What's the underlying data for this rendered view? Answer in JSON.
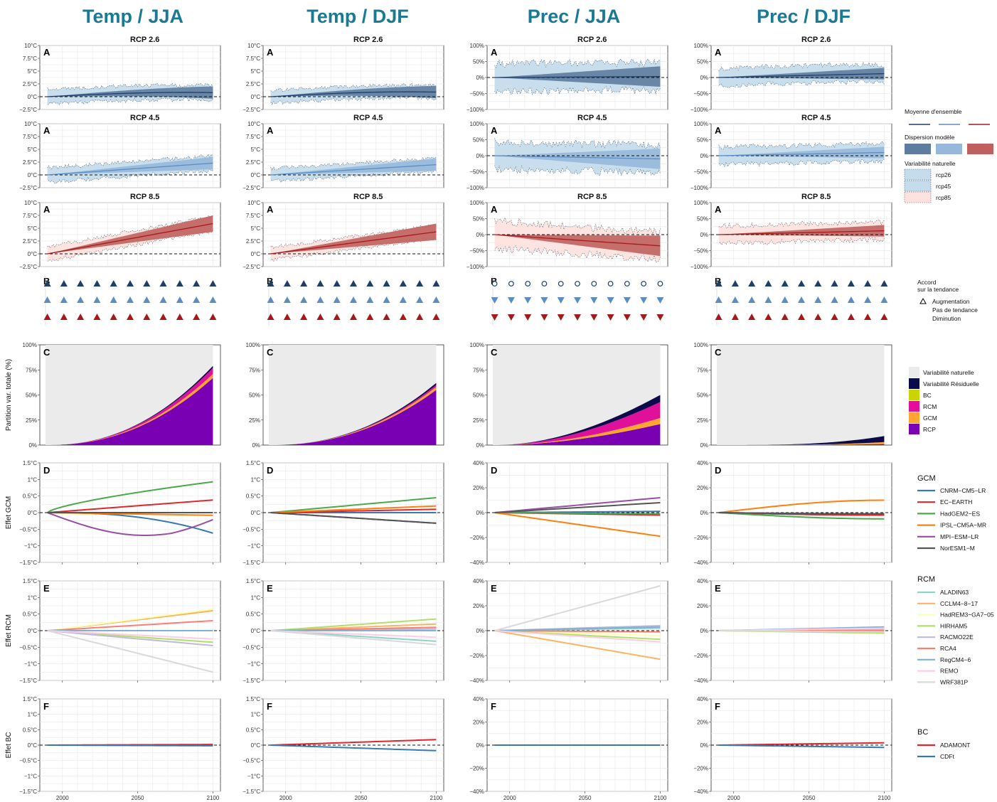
{
  "columns": [
    "Temp / JJA",
    "Temp / DJF",
    "Prec / JJA",
    "Prec / DJF"
  ],
  "panel_letters": [
    "A",
    "B",
    "C",
    "D",
    "E",
    "F"
  ],
  "rcp_titles": [
    "RCP 2.6",
    "RCP 4.5",
    "RCP 8.5"
  ],
  "axis_titles": {
    "C": "Partition var. totale (%)",
    "D": "Effet GCM",
    "E": "Effet RCM",
    "F": "Effet BC"
  },
  "x_ticks": [
    "2000",
    "2050",
    "2100"
  ],
  "ticks": {
    "temp_A": [
      "10°C",
      "7.5°C",
      "5°C",
      "2.5°C",
      "0°C",
      "−2.5°C"
    ],
    "prec_A": [
      "100%",
      "50%",
      "0%",
      "−50%",
      "−100%"
    ],
    "C": [
      "100%",
      "75%",
      "50%",
      "25%",
      "0%"
    ],
    "temp_DEF": [
      "1.5°C",
      "1°C",
      "0.5°C",
      "0°C",
      "−0.5°C",
      "−1°C",
      "−1.5°C"
    ],
    "prec_DEF": [
      "40%",
      "20%",
      "0%",
      "−20%",
      "−40%"
    ]
  },
  "colors": {
    "title": "#1b7a93",
    "rcp26": "#1f3f6a",
    "rcp45": "#5b8dc2",
    "rcp85": "#a31a1a",
    "spread26": "#5e7c9e",
    "spread45": "#97b8da",
    "spread85": "#c0605e",
    "nat26": "#c5dcec",
    "nat45": "#c5dcec",
    "nat85": "#fde3df",
    "var_nat": "#ebebeb",
    "var_res": "#0b0b4b",
    "BC": "#c9d400",
    "RCM": "#e0109a",
    "GCM": "#ffa533",
    "RCP": "#7a00b4"
  },
  "legends": {
    "ensemble": {
      "title": "Moyenne d'ensemble"
    },
    "dispersion": {
      "title": "Dispersion modèle"
    },
    "natural": {
      "title": "Variabilité naturelle",
      "items": [
        "rcp26",
        "rcp45",
        "rcp85"
      ]
    },
    "trend": {
      "title1": "Accord",
      "title2": "sur la tendance",
      "items": [
        "Augmentation",
        "Pas de tendance",
        "Diminution"
      ]
    },
    "partition": {
      "items": [
        "Variabilité naturelle",
        "Variabilité Résiduelle",
        "BC",
        "RCM",
        "GCM",
        "RCP"
      ]
    },
    "gcm": {
      "title": "GCM",
      "items": [
        {
          "name": "CNRM−CM5−LR",
          "color": "#3a78b0"
        },
        {
          "name": "EC−EARTH",
          "color": "#e0262b"
        },
        {
          "name": "HadGEM2−ES",
          "color": "#4aaa4a"
        },
        {
          "name": "IPSL−CM5A−MR",
          "color": "#ff7f0e"
        },
        {
          "name": "MPI−ESM−LR",
          "color": "#984ea3"
        },
        {
          "name": "NorESM1−M",
          "color": "#555555"
        }
      ]
    },
    "rcm": {
      "title": "RCM",
      "items": [
        {
          "name": "ALADIN63",
          "color": "#8dd3c7"
        },
        {
          "name": "CCLM4−8−17",
          "color": "#fdb462"
        },
        {
          "name": "HadREM3−GA7−05",
          "color": "#ffffb3"
        },
        {
          "name": "HIRHAM5",
          "color": "#b3de69"
        },
        {
          "name": "RACMO22E",
          "color": "#bebada"
        },
        {
          "name": "RCA4",
          "color": "#fb8072"
        },
        {
          "name": "RegCM4−6",
          "color": "#80b1d3"
        },
        {
          "name": "REMO",
          "color": "#fccde5"
        },
        {
          "name": "WRF381P",
          "color": "#d9d9d9"
        }
      ]
    },
    "bc": {
      "title": "BC",
      "items": [
        {
          "name": "ADAMONT",
          "color": "#e0262b"
        },
        {
          "name": "CDFt",
          "color": "#3a78b0"
        }
      ]
    }
  },
  "chart_data": [
    {
      "type": "area",
      "panel": "A",
      "description_units": "anomaly",
      "x": [
        1990,
        2100
      ],
      "series": [
        {
          "name": "rcp26",
          "values": {
            "Temp / JJA": 0.8,
            "Temp / DJF": 0.9,
            "Prec / JJA": 3,
            "Prec / DJF": 12
          }
        },
        {
          "name": "rcp45",
          "values": {
            "Temp / JJA": 2.3,
            "Temp / DJF": 2.0,
            "Prec / JJA": -10,
            "Prec / DJF": 10
          }
        },
        {
          "name": "rcp85",
          "values": {
            "Temp / JJA": 5.9,
            "Temp / DJF": 4.3,
            "Prec / JJA": -35,
            "Prec / DJF": 12
          }
        }
      ],
      "ylim_temp": [
        -2.5,
        10
      ],
      "ylim_prec": [
        -100,
        100
      ]
    },
    {
      "type": "scatter",
      "panel": "B",
      "x": [
        1990,
        2000,
        2010,
        2020,
        2030,
        2040,
        2050,
        2060,
        2070,
        2080,
        2090,
        2100
      ],
      "series": [
        {
          "name": "rcp26",
          "values": {
            "Temp / JJA": "up",
            "Temp / DJF": "up",
            "Prec / JJA": "none",
            "Prec / DJF": "up"
          }
        },
        {
          "name": "rcp45",
          "values": {
            "Temp / JJA": "up",
            "Temp / DJF": "up",
            "Prec / JJA": "down",
            "Prec / DJF": "up"
          }
        },
        {
          "name": "rcp85",
          "values": {
            "Temp / JJA": "up",
            "Temp / DJF": "up",
            "Prec / JJA": "down",
            "Prec / DJF": "up"
          }
        }
      ]
    },
    {
      "type": "area",
      "panel": "C",
      "x": [
        1990,
        2100
      ],
      "ylim": [
        0,
        100
      ],
      "final_cumulative_percent": {
        "Temp / JJA": {
          "RCP": 67,
          "GCM": 71,
          "RCM": 77,
          "BC": 77,
          "Variabilité Résiduelle": 79
        },
        "Temp / DJF": {
          "RCP": 55,
          "GCM": 58,
          "RCM": 60,
          "BC": 60,
          "Variabilité Résiduelle": 62
        },
        "Prec / JJA": {
          "RCP": 21,
          "GCM": 27,
          "RCM": 43,
          "BC": 43,
          "Variabilité Résiduelle": 50
        },
        "Prec / DJF": {
          "RCP": 1,
          "GCM": 3,
          "RCM": 3,
          "BC": 3,
          "Variabilité Résiduelle": 9
        }
      }
    },
    {
      "type": "line",
      "panel": "D",
      "x": [
        1990,
        2100
      ],
      "end_values": {
        "Temp / JJA": {
          "CNRM−CM5−LR": -0.62,
          "EC−EARTH": 0.38,
          "HadGEM2−ES": 0.93,
          "IPSL−CM5A−MR": -0.08,
          "MPI−ESM−LR": -0.62,
          "NorESM1−M": 0.0
        },
        "Temp / DJF": {
          "CNRM−CM5−LR": 0.0,
          "EC−EARTH": 0.1,
          "HadGEM2−ES": 0.45,
          "IPSL−CM5A−MR": 0.2,
          "MPI−ESM−LR": -0.32,
          "NorESM1−M": -0.32
        },
        "Prec / JJA": {
          "CNRM−CM5−LR": 1,
          "EC−EARTH": -2,
          "HadGEM2−ES": -1,
          "IPSL−CM5A−MR": -19,
          "MPI−ESM−LR": 12,
          "NorESM1−M": 8
        },
        "Prec / DJF": {
          "CNRM−CM5−LR": -2,
          "EC−EARTH": -2,
          "HadGEM2−ES": -5,
          "IPSL−CM5A−MR": 10,
          "MPI−ESM−LR": -1,
          "NorESM1−M": -1
        }
      },
      "ylim_temp": [
        -1.5,
        1.5
      ],
      "ylim_prec": [
        -40,
        40
      ]
    },
    {
      "type": "line",
      "panel": "E",
      "x": [
        1990,
        2100
      ],
      "end_values": {
        "Temp / JJA": {
          "ALADIN63": 0.6,
          "CCLM4−8−17": 0.6,
          "HadREM3−GA7−05": 0.65,
          "HIRHAM5": -0.35,
          "RACMO22E": -0.45,
          "RCA4": 0.3,
          "RegCM4−6": 0.0,
          "REMO": -0.25,
          "WRF381P": -1.25
        },
        "Temp / DJF": {
          "ALADIN63": -0.32,
          "CCLM4−8−17": 0.2,
          "HadREM3−GA7−05": 0.1,
          "HIRHAM5": 0.35,
          "RACMO22E": 0.05,
          "RCA4": 0.1,
          "RegCM4−6": 0.0,
          "REMO": -0.2,
          "WRF381P": -0.42
        },
        "Prec / JJA": {
          "ALADIN63": 2,
          "CCLM4−8−17": -23,
          "HadREM3−GA7−05": -4,
          "HIRHAM5": -7,
          "RACMO22E": 4,
          "RCA4": -1,
          "RegCM4−6": 3,
          "REMO": -9,
          "WRF381P": 36
        },
        "Prec / DJF": {
          "ALADIN63": 2,
          "CCLM4−8−17": -1,
          "HadREM3−GA7−05": 1,
          "HIRHAM5": -2,
          "RACMO22E": 1,
          "RCA4": 0,
          "RegCM4−6": 3,
          "REMO": 2,
          "WRF381P": -1
        }
      }
    },
    {
      "type": "line",
      "panel": "F",
      "x": [
        1990,
        2100
      ],
      "end_values": {
        "Temp / JJA": {
          "ADAMONT": 0.02,
          "CDFt": -0.02
        },
        "Temp / DJF": {
          "ADAMONT": 0.18,
          "CDFt": -0.18
        },
        "Prec / JJA": {
          "ADAMONT": 0,
          "CDFt": 0
        },
        "Prec / DJF": {
          "ADAMONT": 2,
          "CDFt": -2
        }
      }
    }
  ]
}
